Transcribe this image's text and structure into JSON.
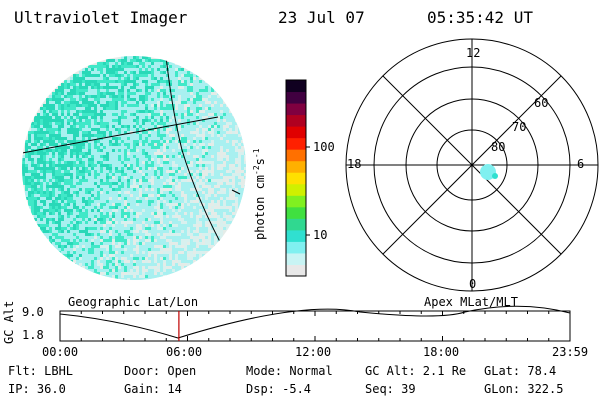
{
  "header": {
    "title": "Ultraviolet Imager",
    "date": "23 Jul 07",
    "time": "05:35:42 UT"
  },
  "colorbar": {
    "label": "photon cm",
    "label_sup1": "-2",
    "label_s": "s",
    "label_sup2": "-1",
    "ticks": [
      {
        "label": "100",
        "value": 100
      },
      {
        "label": "10",
        "value": 10
      }
    ],
    "colors": [
      "#e8e8e8",
      "#c8f4f4",
      "#80f0f0",
      "#30e0d0",
      "#30d890",
      "#40e040",
      "#80f020",
      "#d0f000",
      "#ffe000",
      "#ffb000",
      "#ff7000",
      "#ff2000",
      "#e00000",
      "#b00020",
      "#800040",
      "#400040",
      "#100020"
    ]
  },
  "polar": {
    "top_label": "12",
    "bottom_label": "0",
    "left_label": "18",
    "right_label": "6",
    "ring_labels": [
      "60",
      "70",
      "80"
    ],
    "spot_color": "#80f0f0"
  },
  "timeline": {
    "axis_label": "GC Alt",
    "ymax_label": "9.0",
    "ymin_label": "1.8",
    "left_title": "Geographic Lat/Lon",
    "right_title": "Apex MLat/MLT",
    "ticks": [
      "00:00",
      "06:00",
      "12:00",
      "18:00",
      "23:59"
    ],
    "marker_hour": 5.595,
    "marker_color": "#c00000"
  },
  "footer": {
    "filter": "Flt: LBHL",
    "ip": "IP: 36.0",
    "door": "Door: Open",
    "gain": "Gain: 14",
    "mode": "Mode: Normal",
    "dsp": "Dsp:   -5.4",
    "gc_alt": "GC Alt: 2.1 Re",
    "seq": "Seq: 39",
    "glat": "GLat:  78.4",
    "glon": "GLon: 322.5"
  },
  "image_colors": {
    "low": "#e4ece8",
    "mid": "#a8f0f0",
    "high": "#40e8c8",
    "peak": "#28d8b8"
  }
}
